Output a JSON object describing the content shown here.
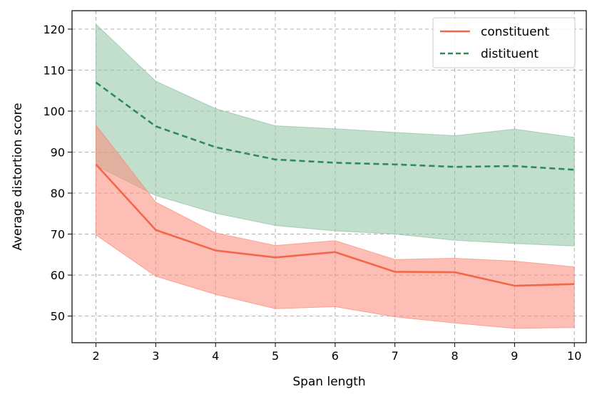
{
  "chart_data": {
    "type": "line",
    "xlabel": "Span length",
    "ylabel": "Average distortion score",
    "x": [
      2,
      3,
      4,
      5,
      6,
      7,
      8,
      9,
      10
    ],
    "xticks": [
      "2",
      "3",
      "4",
      "5",
      "6",
      "7",
      "8",
      "9",
      "10"
    ],
    "yticks": [
      "50",
      "60",
      "70",
      "80",
      "90",
      "100",
      "110",
      "120"
    ],
    "xlim": [
      1.6,
      10.2
    ],
    "ylim": [
      43.5,
      124.5
    ],
    "grid": true,
    "legend_position": "top-right",
    "series": [
      {
        "name": "constituent",
        "line_style": "solid",
        "color": "#f4664a",
        "band_color": "#fb8a78",
        "values": [
          87.0,
          71.0,
          66.0,
          64.3,
          65.6,
          60.8,
          60.7,
          57.4,
          57.8
        ],
        "lower": [
          69.8,
          59.7,
          55.3,
          51.8,
          52.3,
          49.8,
          48.3,
          47.0,
          47.2
        ],
        "upper": [
          96.6,
          77.8,
          70.3,
          67.2,
          68.4,
          63.8,
          64.1,
          63.4,
          62.0
        ]
      },
      {
        "name": "distituent",
        "line_style": "dashed",
        "color": "#2e8b57",
        "band_color": "#8fc2a2",
        "values": [
          107.0,
          96.3,
          91.2,
          88.2,
          87.4,
          87.0,
          86.4,
          86.6,
          85.7
        ],
        "lower": [
          86.7,
          79.4,
          75.1,
          72.1,
          70.8,
          70.0,
          68.5,
          67.7,
          67.1
        ],
        "upper": [
          121.2,
          107.3,
          100.6,
          96.4,
          95.7,
          94.8,
          94.0,
          95.6,
          93.6
        ]
      }
    ]
  }
}
